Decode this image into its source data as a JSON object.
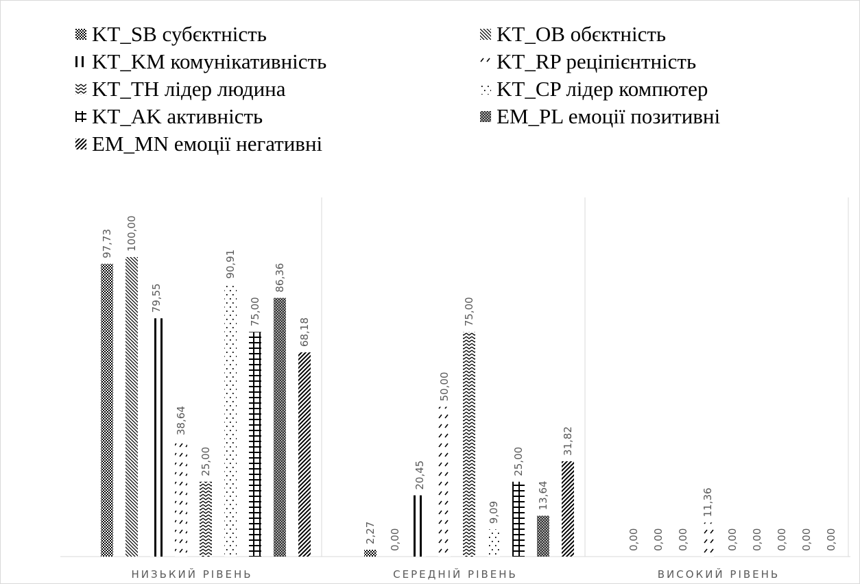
{
  "chart_data": {
    "type": "bar",
    "categories": [
      "НИЗЬКИЙ РІВЕНЬ",
      "СЕРЕДНІЙ РІВЕНЬ",
      "ВИСОКИЙ РІВЕНЬ"
    ],
    "series": [
      {
        "name": "KT_SB субєктність",
        "pattern": "checker",
        "values": [
          97.73,
          2.27,
          0.0
        ],
        "labels": [
          "97,73",
          "2,27",
          "0,00"
        ]
      },
      {
        "name": "KT_OB обєктність",
        "pattern": "diag-down",
        "values": [
          100.0,
          0.0,
          0.0
        ],
        "labels": [
          "100,00",
          "0,00",
          "0,00"
        ]
      },
      {
        "name": "KT_KM комунікативність",
        "pattern": "vlines",
        "values": [
          79.55,
          20.45,
          0.0
        ],
        "labels": [
          "79,55",
          "20,45",
          "0,00"
        ]
      },
      {
        "name": "KT_RP реціпієнтність",
        "pattern": "dashed-diag",
        "values": [
          38.64,
          50.0,
          11.36
        ],
        "labels": [
          "38,64",
          "50,00",
          "11,36"
        ]
      },
      {
        "name": "KT_TH лідер людина",
        "pattern": "zigzag",
        "values": [
          25.0,
          75.0,
          0.0
        ],
        "labels": [
          "25,00",
          "75,00",
          "0,00"
        ]
      },
      {
        "name": "KT_CP лідер компютер",
        "pattern": "dots",
        "values": [
          90.91,
          9.09,
          0.0
        ],
        "labels": [
          "90,91",
          "9,09",
          "0,00"
        ]
      },
      {
        "name": "KT_AK активність",
        "pattern": "grid",
        "values": [
          75.0,
          25.0,
          0.0
        ],
        "labels": [
          "75,00",
          "25,00",
          "0,00"
        ]
      },
      {
        "name": "EM_PL емоції позитивні",
        "pattern": "dense-checker",
        "values": [
          86.36,
          13.64,
          0.0
        ],
        "labels": [
          "86,36",
          "13,64",
          "0,00"
        ]
      },
      {
        "name": "EM_MN емоції негативні",
        "pattern": "diag-up",
        "values": [
          68.18,
          31.82,
          0.0
        ],
        "labels": [
          "68,18",
          "31,82",
          "0,00"
        ]
      }
    ],
    "ylim": [
      0,
      100
    ],
    "grid": "vertical category separators",
    "legend_position": "top",
    "title": "",
    "xlabel": "",
    "ylabel": ""
  }
}
